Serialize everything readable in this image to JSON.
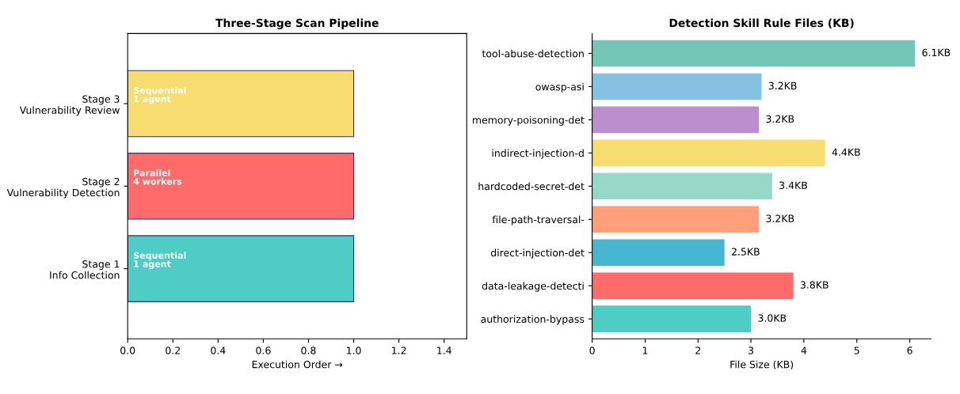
{
  "chart_data": [
    {
      "type": "bar",
      "orientation": "horizontal",
      "title": "Three-Stage Scan Pipeline",
      "xlabel": "Execution Order →",
      "categories": [
        "Stage 3\nVulnerability Review",
        "Stage 2\nVulnerability Detection",
        "Stage 1\nInfo Collection"
      ],
      "values": [
        1.0,
        1.0,
        1.0
      ],
      "colors": [
        "#f7dc6f",
        "#ff6b6b",
        "#4ecdc4"
      ],
      "xlim": [
        0,
        1.5
      ],
      "xticks": [
        {
          "value": 0,
          "label": "0.0"
        },
        {
          "value": 0.2,
          "label": "0.2"
        },
        {
          "value": 0.4,
          "label": "0.4"
        },
        {
          "value": 0.6,
          "label": "0.6"
        },
        {
          "value": 0.8,
          "label": "0.8"
        },
        {
          "value": 1.0,
          "label": "1.0"
        },
        {
          "value": 1.2,
          "label": "1.2"
        },
        {
          "value": 1.4,
          "label": "1.4"
        }
      ],
      "grid": false,
      "legend": false,
      "annotations": [
        "Sequential\n1 agent",
        "Parallel\n4 workers",
        "Sequential\n1 agent"
      ]
    },
    {
      "type": "bar",
      "orientation": "horizontal",
      "title": "Detection Skill Rule Files (KB)",
      "xlabel": "File Size (KB)",
      "categories": [
        "tool-abuse-detection",
        "owasp-asi",
        "memory-poisoning-det",
        "indirect-injection-d",
        "hardcoded-secret-det",
        "file-path-traversal-",
        "direct-injection-det",
        "data-leakage-detecti",
        "authorization-bypass"
      ],
      "values": [
        6.1,
        3.2,
        3.15,
        4.4,
        3.4,
        3.15,
        2.5,
        3.8,
        3.0
      ],
      "value_labels": [
        "6.1KB",
        "3.2KB",
        "3.2KB",
        "4.4KB",
        "3.4KB",
        "3.2KB",
        "2.5KB",
        "3.8KB",
        "3.0KB"
      ],
      "colors": [
        "#73c6b6",
        "#85c1e2",
        "#bb8fce",
        "#f7dc6f",
        "#98d8c8",
        "#ffa07a",
        "#45b7d1",
        "#ff6b6b",
        "#4ecdc4"
      ],
      "xlim": [
        0,
        6.405
      ],
      "xticks": [
        0,
        1,
        2,
        3,
        4,
        5,
        6
      ],
      "grid": false,
      "legend": false
    }
  ]
}
